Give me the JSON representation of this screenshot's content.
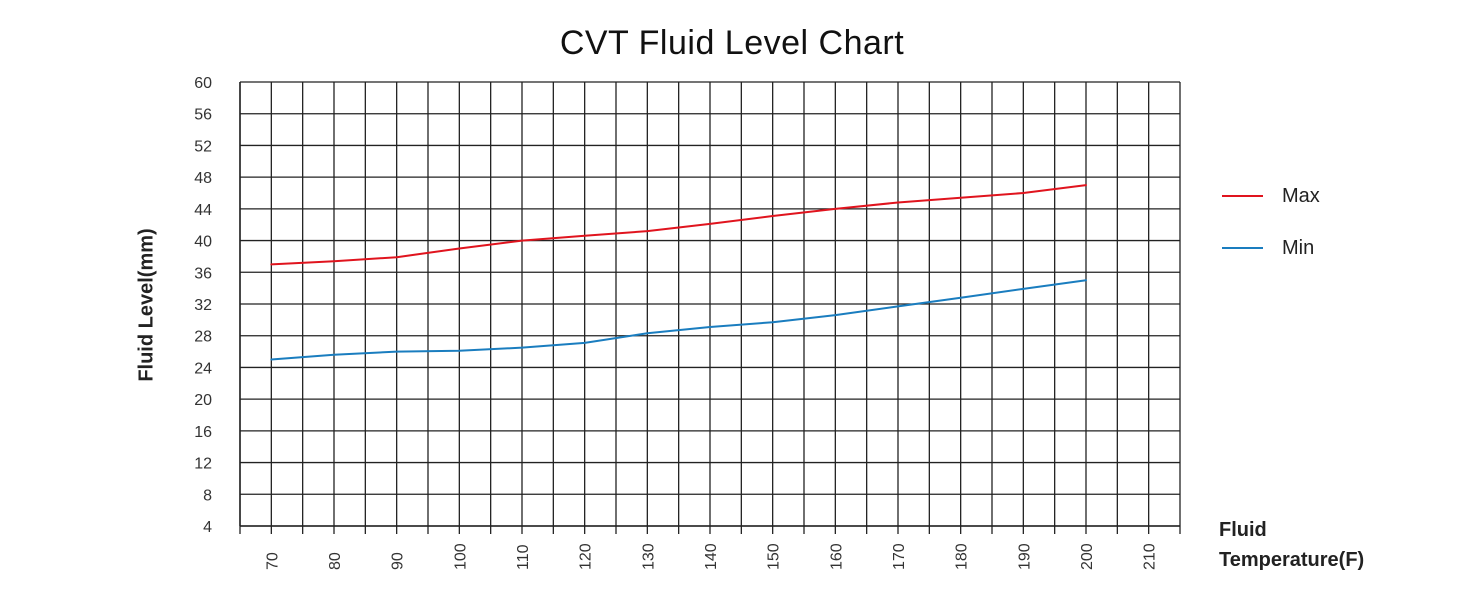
{
  "chart_data": {
    "type": "line",
    "title": "CVT Fluid Level Chart",
    "xlabel_line1": "Fluid",
    "xlabel_line2": "Temperature(F)",
    "ylabel": "Fluid Level(mm)",
    "xlim": [
      65,
      215
    ],
    "ylim": [
      4,
      60
    ],
    "x_ticks": [
      70,
      80,
      90,
      100,
      110,
      120,
      130,
      140,
      150,
      160,
      170,
      180,
      190,
      200,
      210
    ],
    "y_ticks": [
      4,
      8,
      12,
      16,
      20,
      24,
      28,
      32,
      36,
      40,
      44,
      48,
      52,
      56,
      60
    ],
    "grid": true,
    "legend_position": "right",
    "x": [
      70,
      80,
      90,
      100,
      110,
      120,
      130,
      140,
      150,
      160,
      170,
      180,
      190,
      200
    ],
    "series": [
      {
        "name": "Max",
        "color": "#e0141e",
        "values": [
          37,
          37.4,
          37.9,
          39,
          40,
          40.6,
          41.2,
          42.1,
          43.1,
          44,
          44.8,
          45.4,
          46,
          47
        ]
      },
      {
        "name": "Min",
        "color": "#1a7dbf",
        "values": [
          25,
          25.6,
          26,
          26.1,
          26.5,
          27.1,
          28.3,
          29.1,
          29.7,
          30.6,
          31.7,
          32.8,
          33.9,
          35
        ]
      }
    ]
  }
}
